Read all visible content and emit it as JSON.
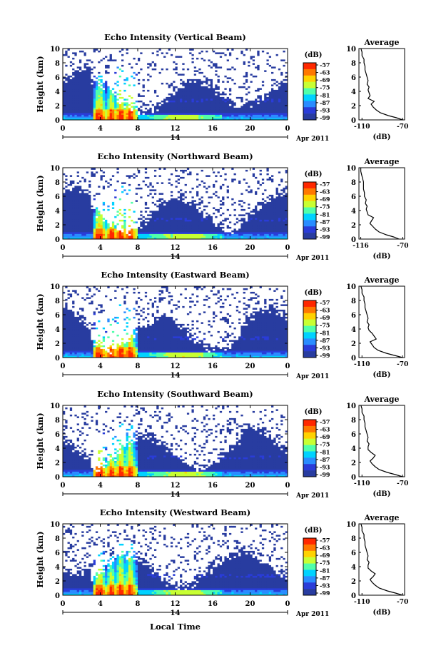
{
  "chart_data": {
    "type": "heatmap",
    "shared": {
      "xlabel": "Local Time",
      "date_label": "Apr 2011",
      "day_label": "14",
      "ylabel": "Height (km)",
      "xticks": [
        "0",
        "4",
        "8",
        "12",
        "16",
        "20",
        "0"
      ],
      "xlim": [
        0,
        24
      ],
      "ylim": [
        0,
        10
      ],
      "yticks": [
        "0",
        "2",
        "4",
        "6",
        "8",
        "10"
      ],
      "colorbar_title": "(dB)",
      "colorbar_ticks": [
        "-57",
        "-63",
        "-69",
        "-75",
        "-81",
        "-87",
        "-93",
        "-99"
      ],
      "colorbar_colors": [
        "#ff2800",
        "#ff7800",
        "#ffd200",
        "#c8ff32",
        "#50ffaa",
        "#00d2ff",
        "#2a8cff",
        "#2a3cd8",
        "#283ca0"
      ],
      "background_color": "#2d3578",
      "avg_title": "Average",
      "avg_xlabel": "(dB)",
      "avg_ylim": [
        0,
        10
      ],
      "avg_yticks": [
        "0",
        "2",
        "4",
        "6",
        "8",
        "10"
      ]
    },
    "panels": [
      {
        "title": "Echo Intensity (Vertical Beam)",
        "avg_xticks": [
          "-110",
          "-70"
        ],
        "avg_xlim": [
          -113,
          -68
        ],
        "avg_profile": {
          "height": [
            0,
            0.3,
            0.6,
            1,
            1.4,
            1.8,
            2.2,
            2.6,
            3,
            3.4,
            3.8,
            4.2,
            4.6,
            5,
            5.5,
            6,
            6.5,
            7,
            7.5,
            8,
            8.5,
            9,
            9.5,
            10
          ],
          "db": [
            -70,
            -76,
            -84,
            -92,
            -96,
            -99,
            -101,
            -98,
            -104,
            -102,
            -103,
            -104,
            -103,
            -105,
            -104,
            -105,
            -106,
            -107,
            -107,
            -108,
            -108,
            -110,
            -110,
            -111
          ]
        }
      },
      {
        "title": "Echo Intensity (Northward Beam)",
        "avg_xticks": [
          "-116",
          "-70"
        ],
        "avg_xlim": [
          -118,
          -68
        ],
        "avg_profile": {
          "height": [
            0,
            0.3,
            0.6,
            1,
            1.4,
            1.8,
            2.2,
            2.6,
            3,
            3.4,
            3.8,
            4.2,
            4.6,
            5,
            5.5,
            6,
            6.5,
            7,
            7.5,
            8,
            8.5,
            9,
            9.5,
            10
          ],
          "db": [
            -74,
            -80,
            -88,
            -96,
            -100,
            -103,
            -106,
            -104,
            -102,
            -108,
            -109,
            -110,
            -109,
            -111,
            -110,
            -112,
            -112,
            -113,
            -113,
            -113,
            -114,
            -115,
            -116,
            -116
          ]
        }
      },
      {
        "title": "Echo Intensity (Eastward Beam)",
        "avg_xticks": [
          "-110",
          "-70"
        ],
        "avg_xlim": [
          -113,
          -68
        ],
        "avg_profile": {
          "height": [
            0,
            0.3,
            0.6,
            1,
            1.4,
            1.8,
            2.2,
            2.6,
            3,
            3.4,
            3.8,
            4.2,
            4.6,
            5,
            5.5,
            6,
            6.5,
            7,
            7.5,
            8,
            8.5,
            9,
            9.5,
            10
          ],
          "db": [
            -70,
            -78,
            -86,
            -94,
            -98,
            -100,
            -102,
            -96,
            -98,
            -100,
            -103,
            -104,
            -103,
            -105,
            -104,
            -105,
            -106,
            -107,
            -107,
            -108,
            -108,
            -110,
            -110,
            -111
          ]
        }
      },
      {
        "title": "Echo Intensity (Southward Beam)",
        "avg_xticks": [
          "-110",
          "-70"
        ],
        "avg_xlim": [
          -113,
          -68
        ],
        "avg_profile": {
          "height": [
            0,
            0.3,
            0.6,
            1,
            1.4,
            1.8,
            2.2,
            2.6,
            3,
            3.4,
            3.8,
            4.2,
            4.6,
            5,
            5.5,
            6,
            6.5,
            7,
            7.5,
            8,
            8.5,
            9,
            9.5,
            10
          ],
          "db": [
            -70,
            -77,
            -85,
            -93,
            -97,
            -100,
            -102,
            -99,
            -97,
            -101,
            -104,
            -104,
            -103,
            -105,
            -104,
            -105,
            -106,
            -107,
            -107,
            -108,
            -108,
            -110,
            -110,
            -111
          ]
        }
      },
      {
        "title": "Echo Intensity (Westward Beam)",
        "avg_xticks": [
          "-110",
          "-70"
        ],
        "avg_xlim": [
          -113,
          -68
        ],
        "avg_profile": {
          "height": [
            0,
            0.3,
            0.6,
            1,
            1.4,
            1.8,
            2.2,
            2.6,
            3,
            3.4,
            3.8,
            4.2,
            4.6,
            5,
            5.5,
            6,
            6.5,
            7,
            7.5,
            8,
            8.5,
            9,
            9.5,
            10
          ],
          "db": [
            -70,
            -77,
            -85,
            -93,
            -97,
            -100,
            -102,
            -99,
            -97,
            -101,
            -104,
            -104,
            -103,
            -105,
            -104,
            -105,
            -106,
            -107,
            -107,
            -108,
            -108,
            -110,
            -110,
            -111
          ]
        }
      }
    ]
  }
}
